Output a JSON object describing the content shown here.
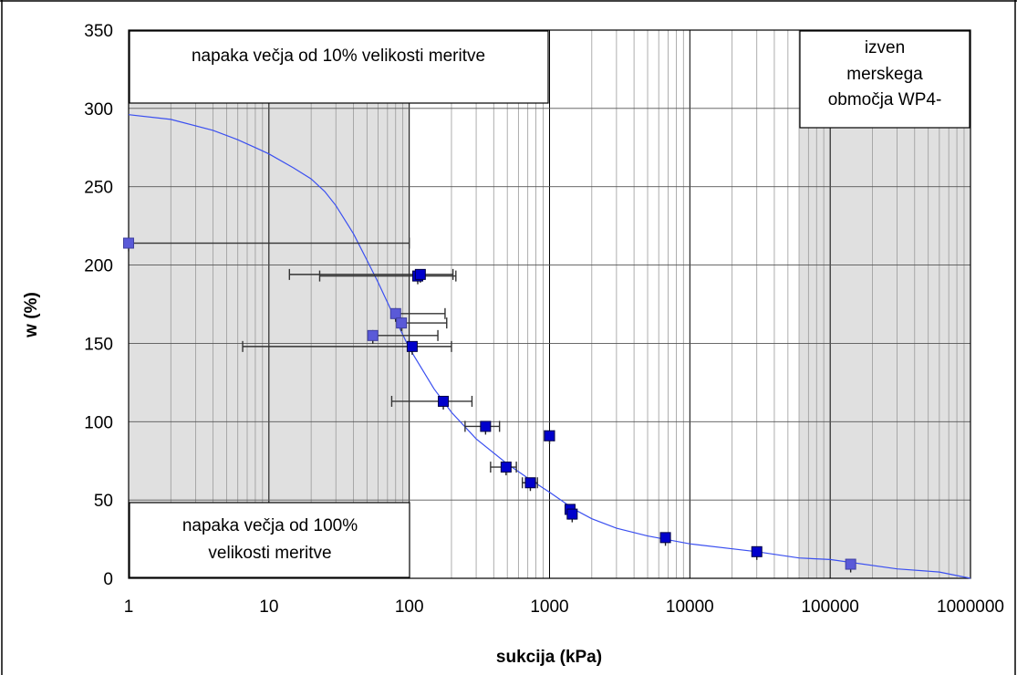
{
  "chart_data": {
    "type": "scatter",
    "xscale": "log",
    "xlim": [
      1,
      1000000
    ],
    "ylim": [
      0,
      350
    ],
    "xlabel": "sukcija (kPa)",
    "ylabel": "w (%)",
    "grid": true,
    "x_ticks": [
      "1",
      "10",
      "100",
      "1000",
      "10000",
      "100000",
      "1000000"
    ],
    "y_ticks": [
      "0",
      "50",
      "100",
      "150",
      "200",
      "250",
      "300",
      "350"
    ],
    "shaded_regions": [
      {
        "x": [
          1,
          100
        ],
        "color": "#e0e0e0"
      },
      {
        "x": [
          60000,
          1000000
        ],
        "color": "#e0e0e0"
      }
    ],
    "annotations": [
      {
        "id": "top-left",
        "lines": [
          "napaka večja od 10% velikosti meritve"
        ]
      },
      {
        "id": "bottom-left",
        "lines": [
          "napaka večja od 100%",
          "velikosti meritve"
        ]
      },
      {
        "id": "top-right",
        "lines": [
          "izven",
          "merskega",
          "območja WP4-"
        ]
      }
    ],
    "series": [
      {
        "type": "points",
        "color": "#0000cc",
        "points": [
          {
            "x": 1.0,
            "y": 214,
            "xerr": [
              1.0,
              100
            ]
          },
          {
            "x": 115,
            "y": 193,
            "xerr": [
              23,
              215
            ]
          },
          {
            "x": 120,
            "y": 194,
            "xerr": [
              14,
              205
            ]
          },
          {
            "x": 80,
            "y": 169,
            "xerr": [
              80,
              180
            ]
          },
          {
            "x": 88,
            "y": 163,
            "xerr": [
              88,
              185
            ]
          },
          {
            "x": 55,
            "y": 155,
            "xerr": [
              55,
              160
            ]
          },
          {
            "x": 105,
            "y": 148,
            "xerr": [
              6.5,
              200
            ]
          },
          {
            "x": 175,
            "y": 113,
            "xerr": [
              75,
              280
            ]
          },
          {
            "x": 350,
            "y": 97,
            "xerr": [
              250,
              440
            ]
          },
          {
            "x": 1000,
            "y": 91,
            "xerr": [
              920,
              1080
            ]
          },
          {
            "x": 490,
            "y": 71,
            "xerr": [
              380,
              580
            ]
          },
          {
            "x": 730,
            "y": 61,
            "xerr": [
              640,
              820
            ]
          },
          {
            "x": 1400,
            "y": 44,
            "xerr": [
              1350,
              1480
            ]
          },
          {
            "x": 1450,
            "y": 41,
            "xerr": [
              1380,
              1520
            ]
          },
          {
            "x": 6700,
            "y": 26,
            "xerr": [
              6600,
              6800
            ]
          },
          {
            "x": 30000,
            "y": 17,
            "xerr": [
              29800,
              30200
            ]
          },
          {
            "x": 140000,
            "y": 9,
            "xerr": [
              139500,
              140500
            ]
          }
        ]
      },
      {
        "type": "curve",
        "color": "#3a4ff0",
        "points": [
          [
            1,
            296
          ],
          [
            2,
            293
          ],
          [
            4,
            286
          ],
          [
            6,
            280
          ],
          [
            8,
            275
          ],
          [
            10,
            271
          ],
          [
            15,
            262
          ],
          [
            20,
            255
          ],
          [
            25,
            247
          ],
          [
            30,
            238
          ],
          [
            40,
            220
          ],
          [
            50,
            203
          ],
          [
            60,
            189
          ],
          [
            80,
            165
          ],
          [
            100,
            147
          ],
          [
            150,
            121
          ],
          [
            200,
            106
          ],
          [
            300,
            89
          ],
          [
            500,
            73
          ],
          [
            700,
            64
          ],
          [
            1000,
            55
          ],
          [
            1500,
            44
          ],
          [
            2000,
            38
          ],
          [
            3000,
            32
          ],
          [
            5000,
            27
          ],
          [
            10000,
            22
          ],
          [
            30000,
            17
          ],
          [
            60000,
            13
          ],
          [
            100000,
            12
          ],
          [
            300000,
            6
          ],
          [
            600000,
            4
          ],
          [
            1000000,
            0
          ]
        ]
      }
    ]
  }
}
